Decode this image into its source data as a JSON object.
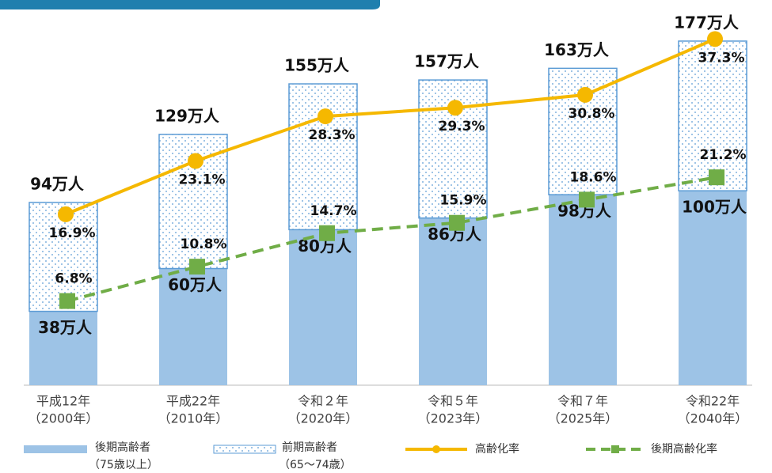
{
  "chart_data": {
    "type": "bar",
    "categories": [
      [
        "平成12年",
        "（2000年）"
      ],
      [
        "平成22年",
        "（2010年）"
      ],
      [
        "令和２年",
        "（2020年）"
      ],
      [
        "令和５年",
        "（2023年）"
      ],
      [
        "令和７年",
        "（2025年）"
      ],
      [
        "令和22年",
        "（2040年）"
      ]
    ],
    "ylim": [
      0,
      190
    ],
    "y2lim": [
      -3,
      40
    ],
    "series": [
      {
        "name": "後期高齢者",
        "note": "（75歳以上）",
        "color": "#9dc3e6",
        "values": [
          38,
          60,
          80,
          86,
          98,
          100
        ],
        "value_labels": [
          "38万人",
          "60万人",
          "80万人",
          "86万人",
          "98万人",
          "100万人"
        ]
      },
      {
        "name": "前期高齢者",
        "note": "（65～74歳）",
        "color": "#5b9bd5",
        "values": [
          56,
          69,
          75,
          71,
          65,
          77
        ]
      },
      {
        "name": "高齢化率",
        "type": "line",
        "axis": "y2",
        "color": "#f5b800",
        "values": [
          16.9,
          23.1,
          28.3,
          29.3,
          30.8,
          37.3
        ],
        "value_labels": [
          "16.9%",
          "23.1%",
          "28.3%",
          "29.3%",
          "30.8%",
          "37.3%"
        ]
      },
      {
        "name": "後期高齢化率",
        "type": "line",
        "axis": "y2",
        "dashed": true,
        "color": "#70ad47",
        "values": [
          6.8,
          10.8,
          14.7,
          15.9,
          18.6,
          21.2
        ],
        "value_labels": [
          "6.8%",
          "10.8%",
          "14.7%",
          "15.9%",
          "18.6%",
          "21.2%"
        ]
      }
    ],
    "totals": [
      94,
      129,
      155,
      157,
      163,
      177
    ],
    "total_labels": [
      "94万人",
      "129万人",
      "155万人",
      "157万人",
      "163万人",
      "177万人"
    ]
  }
}
